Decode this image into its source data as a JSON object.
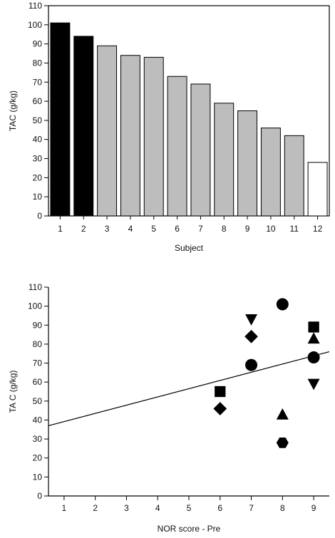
{
  "chart_data": [
    {
      "type": "bar",
      "xlabel": "Subject",
      "ylabel": "TAC (g/kg)",
      "ylim": [
        0,
        110
      ],
      "yticks": [
        0,
        10,
        20,
        30,
        40,
        50,
        60,
        70,
        80,
        90,
        100,
        110
      ],
      "categories": [
        "1",
        "2",
        "3",
        "4",
        "5",
        "6",
        "7",
        "8",
        "9",
        "10",
        "11",
        "12"
      ],
      "values": [
        101,
        94,
        89,
        84,
        83,
        73,
        69,
        59,
        55,
        46,
        42,
        28
      ],
      "bar_colors": [
        "#000000",
        "#000000",
        "#bdbdbd",
        "#bdbdbd",
        "#bdbdbd",
        "#bdbdbd",
        "#bdbdbd",
        "#bdbdbd",
        "#bdbdbd",
        "#bdbdbd",
        "#bdbdbd",
        "#ffffff"
      ]
    },
    {
      "type": "scatter",
      "xlabel": "NOR score - Pre",
      "ylabel": "TA C (g/kg)",
      "xlim": [
        0.5,
        9.5
      ],
      "ylim": [
        0,
        110
      ],
      "xticks": [
        1,
        2,
        3,
        4,
        5,
        6,
        7,
        8,
        9
      ],
      "yticks": [
        0,
        10,
        20,
        30,
        40,
        50,
        60,
        70,
        80,
        90,
        100,
        110
      ],
      "points": [
        {
          "x": 6,
          "y": 55,
          "marker": "square"
        },
        {
          "x": 6,
          "y": 46,
          "marker": "diamond"
        },
        {
          "x": 7,
          "y": 93,
          "marker": "triangle-down"
        },
        {
          "x": 7,
          "y": 84,
          "marker": "diamond"
        },
        {
          "x": 7,
          "y": 69,
          "marker": "circle"
        },
        {
          "x": 8,
          "y": 101,
          "marker": "circle"
        },
        {
          "x": 8,
          "y": 43,
          "marker": "triangle-up"
        },
        {
          "x": 8,
          "y": 28,
          "marker": "hexagon"
        },
        {
          "x": 9,
          "y": 89,
          "marker": "square"
        },
        {
          "x": 9,
          "y": 83,
          "marker": "triangle-up"
        },
        {
          "x": 9,
          "y": 73,
          "marker": "circle"
        },
        {
          "x": 9,
          "y": 59,
          "marker": "triangle-down"
        }
      ],
      "regression_line": {
        "x": [
          0.5,
          9.5
        ],
        "y": [
          37,
          76
        ]
      }
    }
  ]
}
